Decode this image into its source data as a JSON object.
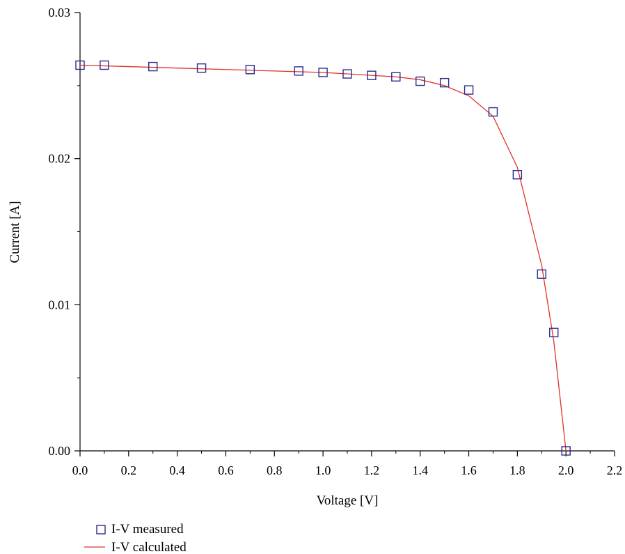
{
  "chart_data": {
    "type": "line",
    "xlabel": "Voltage [V]",
    "ylabel": "Current [A]",
    "xlim": [
      0.0,
      2.2
    ],
    "ylim": [
      0.0,
      0.03
    ],
    "x_ticks": [
      "0.0",
      "0.2",
      "0.4",
      "0.6",
      "0.8",
      "1.0",
      "1.2",
      "1.4",
      "1.6",
      "1.8",
      "2.0",
      "2.2"
    ],
    "y_ticks": [
      "0.00",
      "0.01",
      "0.02",
      "0.03"
    ],
    "grid": false,
    "legend_position": "bottom-left",
    "series": [
      {
        "name": "I-V measured",
        "marker": "open-square",
        "color": "#2b2b8f",
        "x": [
          0.0,
          0.1,
          0.3,
          0.5,
          0.7,
          0.9,
          1.0,
          1.1,
          1.2,
          1.3,
          1.4,
          1.5,
          1.6,
          1.7,
          1.8,
          1.9,
          1.95,
          2.0
        ],
        "y": [
          0.0264,
          0.0264,
          0.0263,
          0.0262,
          0.0261,
          0.026,
          0.0259,
          0.0258,
          0.0257,
          0.0256,
          0.0253,
          0.0252,
          0.0247,
          0.0232,
          0.0189,
          0.0121,
          0.0081,
          0.0
        ]
      },
      {
        "name": "I-V calculated",
        "marker": "line",
        "color": "#e0302a",
        "x": [
          0.0,
          0.2,
          0.4,
          0.6,
          0.8,
          1.0,
          1.2,
          1.3,
          1.4,
          1.5,
          1.6,
          1.7,
          1.8,
          1.9,
          1.95,
          2.0
        ],
        "y": [
          0.0264,
          0.0263,
          0.0262,
          0.0261,
          0.026,
          0.0259,
          0.0257,
          0.0256,
          0.0254,
          0.025,
          0.0243,
          0.0229,
          0.0194,
          0.0127,
          0.0075,
          0.0
        ]
      }
    ]
  }
}
